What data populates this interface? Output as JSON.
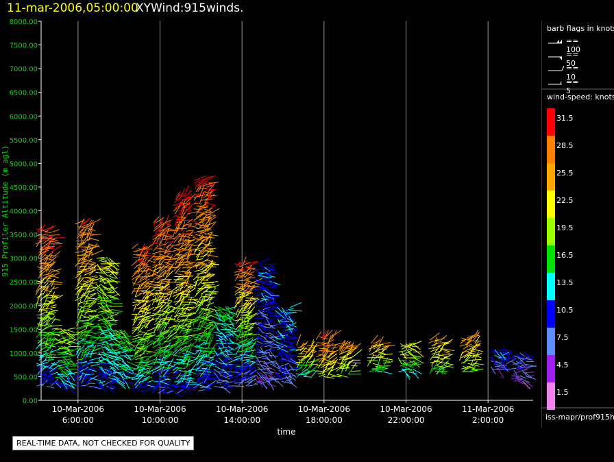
{
  "header": {
    "date_time": "11-mar-2006,05:00:00",
    "product": "XYWind:915winds."
  },
  "disclaimer": "REAL-TIME DATA, NOT CHECKED FOR QUALITY",
  "legend": {
    "barb_title": "barb flags in knots",
    "barb_flags": [
      "== 100",
      "== 50",
      "== 10",
      "== 5"
    ],
    "speed_title": "wind-speed: knots",
    "speed_labels": [
      "31.5",
      "28.5",
      "25.5",
      "22.5",
      "19.5",
      "16.5",
      "13.5",
      "10.5",
      "7.5",
      "4.5",
      "1.5"
    ],
    "speed_colors": [
      "#ff0000",
      "#ff7f00",
      "#ffa500",
      "#ffff00",
      "#9aff00",
      "#00e000",
      "#00ffff",
      "#0000ff",
      "#5f8fff",
      "#a020f0",
      "#ee82ee"
    ],
    "footer_id": "iss-mapr/prof915h"
  },
  "chart_data": {
    "type": "scatter",
    "title": "11-mar-2006,05:00:00 XYWind:915winds.",
    "xlabel": "time",
    "ylabel": "915 Profiler Altitude (m agl)",
    "xlim": [
      "2006-03-10 04:12",
      "2006-03-11 04:12"
    ],
    "ylim": [
      0,
      8000
    ],
    "grid": true,
    "y_ticks": [
      "0.00",
      "500.00",
      "1000.00",
      "1500.00",
      "2000.00",
      "2500.00",
      "3000.00",
      "3500.00",
      "4000.00",
      "4500.00",
      "5000.00",
      "5500.00",
      "6000.00",
      "6500.00",
      "7000.00",
      "7500.00",
      "8000.00"
    ],
    "x_ticks": [
      {
        "date": "10-Mar-2006",
        "time": "6:00:00",
        "x": "2006-03-10 06:00"
      },
      {
        "date": "10-Mar-2006",
        "time": "10:00:00",
        "x": "2006-03-10 10:00"
      },
      {
        "date": "10-Mar-2006",
        "time": "14:00:00",
        "x": "2006-03-10 14:00"
      },
      {
        "date": "10-Mar-2006",
        "time": "18:00:00",
        "x": "2006-03-10 18:00"
      },
      {
        "date": "10-Mar-2006",
        "time": "22:00:00",
        "x": "2006-03-10 22:00"
      },
      {
        "date": "11-Mar-2006",
        "time": "2:00:00",
        "x": "2006-03-11 02:00"
      }
    ],
    "series": [
      {
        "x": "2006-03-10 04:20",
        "alt_bottom": 300,
        "alt_top": 3600,
        "speed_bottom": 9,
        "speed_top": 31
      },
      {
        "x": "2006-03-10 05:15",
        "alt_bottom": 300,
        "alt_top": 1500,
        "speed_bottom": 12,
        "speed_top": 20
      },
      {
        "x": "2006-03-10 06:15",
        "alt_bottom": 300,
        "alt_top": 3750,
        "speed_bottom": 9,
        "speed_top": 29
      },
      {
        "x": "2006-03-10 07:15",
        "alt_bottom": 300,
        "alt_top": 3050,
        "speed_bottom": 10,
        "speed_top": 22
      },
      {
        "x": "2006-03-10 08:00",
        "alt_bottom": 400,
        "alt_top": 1500,
        "speed_bottom": 12,
        "speed_top": 18
      },
      {
        "x": "2006-03-10 09:00",
        "alt_bottom": 200,
        "alt_top": 3200,
        "speed_bottom": 11,
        "speed_top": 30
      },
      {
        "x": "2006-03-10 10:00",
        "alt_bottom": 150,
        "alt_top": 3750,
        "speed_bottom": 9,
        "speed_top": 31
      },
      {
        "x": "2006-03-10 11:00",
        "alt_bottom": 150,
        "alt_top": 4300,
        "speed_bottom": 10,
        "speed_top": 32
      },
      {
        "x": "2006-03-10 12:00",
        "alt_bottom": 200,
        "alt_top": 4650,
        "speed_bottom": 9,
        "speed_top": 31
      },
      {
        "x": "2006-03-10 13:00",
        "alt_bottom": 300,
        "alt_top": 2000,
        "speed_bottom": 8,
        "speed_top": 16
      },
      {
        "x": "2006-03-10 14:00",
        "alt_bottom": 300,
        "alt_top": 2900,
        "speed_bottom": 6,
        "speed_top": 30
      },
      {
        "x": "2006-03-10 15:00",
        "alt_bottom": 350,
        "alt_top": 2900,
        "speed_bottom": 6,
        "speed_top": 12
      },
      {
        "x": "2006-03-10 16:00",
        "alt_bottom": 400,
        "alt_top": 2000,
        "speed_bottom": 8,
        "speed_top": 13
      },
      {
        "x": "2006-03-10 17:00",
        "alt_bottom": 500,
        "alt_top": 1200,
        "speed_bottom": 14,
        "speed_top": 26
      },
      {
        "x": "2006-03-10 18:00",
        "alt_bottom": 500,
        "alt_top": 1350,
        "speed_bottom": 20,
        "speed_top": 29
      },
      {
        "x": "2006-03-10 19:00",
        "alt_bottom": 550,
        "alt_top": 1200,
        "speed_bottom": 18,
        "speed_top": 27
      },
      {
        "x": "2006-03-10 20:30",
        "alt_bottom": 600,
        "alt_top": 1200,
        "speed_bottom": 14,
        "speed_top": 27
      },
      {
        "x": "2006-03-10 22:00",
        "alt_bottom": 600,
        "alt_top": 1200,
        "speed_bottom": 14,
        "speed_top": 22
      },
      {
        "x": "2006-03-10 23:30",
        "alt_bottom": 550,
        "alt_top": 1300,
        "speed_bottom": 16,
        "speed_top": 26
      },
      {
        "x": "2006-03-11 01:00",
        "alt_bottom": 600,
        "alt_top": 1350,
        "speed_bottom": 18,
        "speed_top": 27
      },
      {
        "x": "2006-03-11 02:30",
        "alt_bottom": 650,
        "alt_top": 1100,
        "speed_bottom": 6,
        "speed_top": 12
      },
      {
        "x": "2006-03-11 03:30",
        "alt_bottom": 400,
        "alt_top": 1000,
        "speed_bottom": 4,
        "speed_top": 10
      }
    ]
  }
}
